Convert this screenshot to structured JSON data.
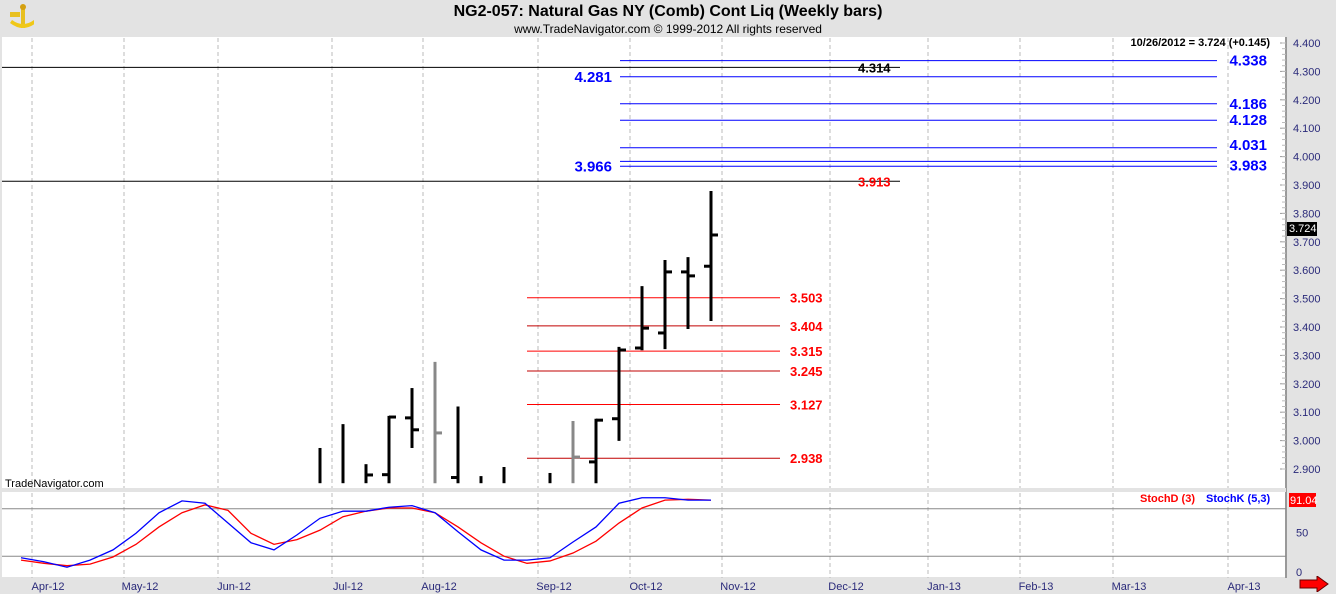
{
  "header": {
    "title": "NG2-057:  Natural Gas NY (Comb) Cont Liq  (Weekly bars)",
    "copyright": "www.TradeNavigator.com © 1999-2012 All rights reserved"
  },
  "last_quote": "10/26/2012 = 3.724 (+0.145)",
  "last_price_tag": "3.724",
  "watermark": "TradeNavigator.com",
  "stoch_legend": {
    "d": "StochD (3)",
    "k": "StochK (5,3)",
    "value": "91.04"
  },
  "colors": {
    "blue": "#0000ff",
    "red": "#ff0000",
    "black": "#000000",
    "gray": "#888888",
    "axis_text": "#2a2a7a"
  },
  "chart_data": {
    "type": "ohlc",
    "title": "NG2-057: Natural Gas NY (Comb) Cont Liq (Weekly bars)",
    "ylim": [
      2.87,
      4.43
    ],
    "yticks": [
      "4.400",
      "4.300",
      "4.200",
      "4.100",
      "4.000",
      "3.900",
      "3.800",
      "3.700",
      "3.600",
      "3.500",
      "3.400",
      "3.300",
      "3.200",
      "3.100",
      "3.000",
      "2.900"
    ],
    "xticks": [
      "Apr-12",
      "May-12",
      "Jun-12",
      "Jul-12",
      "Aug-12",
      "Sep-12",
      "Oct-12",
      "Nov-12",
      "Dec-12",
      "Jan-13",
      "Feb-13",
      "Mar-13",
      "Apr-13"
    ],
    "bars": [
      {
        "w": -17,
        "o": null,
        "h": 2.974,
        "l": 2.85,
        "c": null,
        "gray": false
      },
      {
        "w": -16,
        "o": null,
        "h": 3.058,
        "l": 2.85,
        "c": null,
        "gray": false
      },
      {
        "w": -15,
        "o": null,
        "h": 2.917,
        "l": 2.85,
        "c": 2.879,
        "gray": false
      },
      {
        "w": -14,
        "o": 2.88,
        "h": 3.087,
        "l": 2.85,
        "c": 3.083,
        "gray": false
      },
      {
        "w": -13,
        "o": 3.08,
        "h": 3.185,
        "l": 2.974,
        "c": 3.038,
        "gray": false
      },
      {
        "w": -12,
        "o": null,
        "h": 3.277,
        "l": 2.85,
        "c": 3.027,
        "gray": true
      },
      {
        "w": -11,
        "o": 2.87,
        "h": 3.12,
        "l": 2.85,
        "c": null,
        "gray": false
      },
      {
        "w": -10,
        "o": null,
        "h": 2.875,
        "l": 2.85,
        "c": null,
        "gray": false
      },
      {
        "w": -9,
        "o": null,
        "h": 2.907,
        "l": 2.85,
        "c": null,
        "gray": false
      },
      {
        "w": -7,
        "o": null,
        "h": 2.886,
        "l": 2.85,
        "c": null,
        "gray": false
      },
      {
        "w": -6,
        "o": null,
        "h": 3.069,
        "l": 2.85,
        "c": 2.942,
        "gray": true
      },
      {
        "w": -5,
        "o": 2.925,
        "h": 3.077,
        "l": 2.85,
        "c": 3.072,
        "gray": false
      },
      {
        "w": -4,
        "o": 3.077,
        "h": 3.33,
        "l": 2.999,
        "c": 3.319,
        "gray": false
      },
      {
        "w": -3,
        "o": 3.326,
        "h": 3.544,
        "l": 3.318,
        "c": 3.396,
        "gray": false
      },
      {
        "w": -2,
        "o": 3.379,
        "h": 3.636,
        "l": 3.322,
        "c": 3.594,
        "gray": false
      },
      {
        "w": -1,
        "o": 3.594,
        "h": 3.646,
        "l": 3.393,
        "c": 3.58,
        "gray": false
      },
      {
        "w": 0,
        "o": 3.614,
        "h": 3.879,
        "l": 3.421,
        "c": 3.724,
        "gray": false
      }
    ],
    "levels_blue_right": [
      "4.338",
      "4.186",
      "4.128",
      "4.031",
      "3.983"
    ],
    "levels_blue_left": [
      "4.281",
      "3.966"
    ],
    "levels_black": [
      "4.314",
      "3.913"
    ],
    "levels_red": [
      "3.503",
      "3.404",
      "3.315",
      "3.245",
      "3.127",
      "2.938"
    ],
    "stoch": {
      "ylim": [
        0,
        100
      ],
      "yticks": [
        "50",
        "0"
      ],
      "bands": [
        80,
        20
      ],
      "k": [
        18,
        13,
        6,
        15,
        28,
        49,
        75,
        90,
        87,
        62,
        37,
        28,
        47,
        68,
        77,
        77,
        82,
        84,
        75,
        51,
        28,
        15,
        15,
        18,
        38,
        57,
        87,
        94,
        94,
        91,
        91
      ],
      "d": [
        15,
        11,
        8,
        10,
        19,
        35,
        57,
        75,
        85,
        78,
        49,
        35,
        41,
        53,
        70,
        77,
        81,
        81,
        75,
        57,
        37,
        20,
        11,
        14,
        24,
        39,
        62,
        81,
        91,
        92,
        91
      ]
    }
  }
}
